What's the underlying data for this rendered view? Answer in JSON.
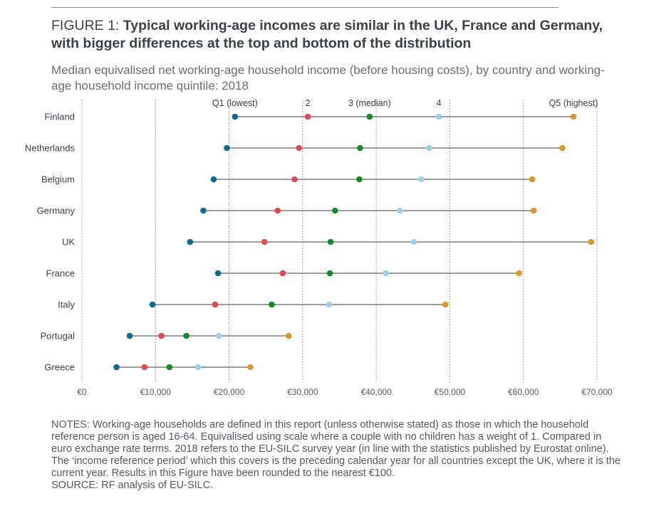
{
  "figure": {
    "label": "FIGURE 1: ",
    "title": "Typical working-age incomes are similar in the UK, France and Germany, with bigger differences at the top and bottom of the distribution",
    "subtitle": "Median equivalised net working-age household income (before housing costs), by country and working-age household income quintile: 2018"
  },
  "colors": {
    "Q1": "#0e6a8e",
    "Q2": "#e5474f",
    "Q3": "#138a26",
    "Q4": "#9ecfe8",
    "Q5": "#d9982b",
    "line": "#3a3a3a",
    "grid": "#a0a0a0"
  },
  "chart_data": {
    "type": "dot-range",
    "categories": [
      "Finland",
      "Netherlands",
      "Belgium",
      "Germany",
      "UK",
      "France",
      "Italy",
      "Portugal",
      "Greece"
    ],
    "series": [
      {
        "name": "Q1 (lowest)",
        "key": "Q1",
        "values": [
          20800,
          19700,
          17900,
          16500,
          14700,
          18500,
          9600,
          6500,
          4700
        ]
      },
      {
        "name": "2",
        "key": "Q2",
        "values": [
          30700,
          29500,
          28900,
          26600,
          24800,
          27300,
          18100,
          10800,
          8500
        ]
      },
      {
        "name": "3 (median)",
        "key": "Q3",
        "values": [
          39100,
          37800,
          37700,
          34400,
          33800,
          33700,
          25800,
          14200,
          11900
        ]
      },
      {
        "name": "4",
        "key": "Q4",
        "values": [
          48500,
          47200,
          46100,
          43200,
          45100,
          41300,
          33600,
          18600,
          15800
        ]
      },
      {
        "name": "Q5 (highest)",
        "key": "Q5",
        "values": [
          66800,
          65300,
          61200,
          61400,
          69200,
          59400,
          49400,
          28100,
          22900
        ]
      }
    ],
    "xlim": [
      0,
      70000
    ],
    "xticks": [
      0,
      10000,
      20000,
      30000,
      40000,
      50000,
      60000,
      70000
    ],
    "xtick_labels": [
      "€0",
      "€10,000",
      "€20,000",
      "€30,000",
      "€40,000",
      "€50,000",
      "€60,000",
      "€70,000"
    ],
    "grid": "vertical-dotted",
    "legend": "top"
  },
  "notes": {
    "text": "NOTES: Working-age households are defined in this report (unless otherwise stated) as those in which the household reference person is aged 16-64. Equivalised using scale where a couple with no children has a weight of 1. Compared in euro exchange rate terms. 2018 refers to the EU-SILC survey year (in line with the statistics published by Eurostat online). The ‘income reference period’ which this covers is the preceding calendar year for all countries except the UK, where it is the current year. Results in this Figure have been rounded to the nearest €100.",
    "source": "SOURCE: RF analysis of EU-SILC."
  }
}
